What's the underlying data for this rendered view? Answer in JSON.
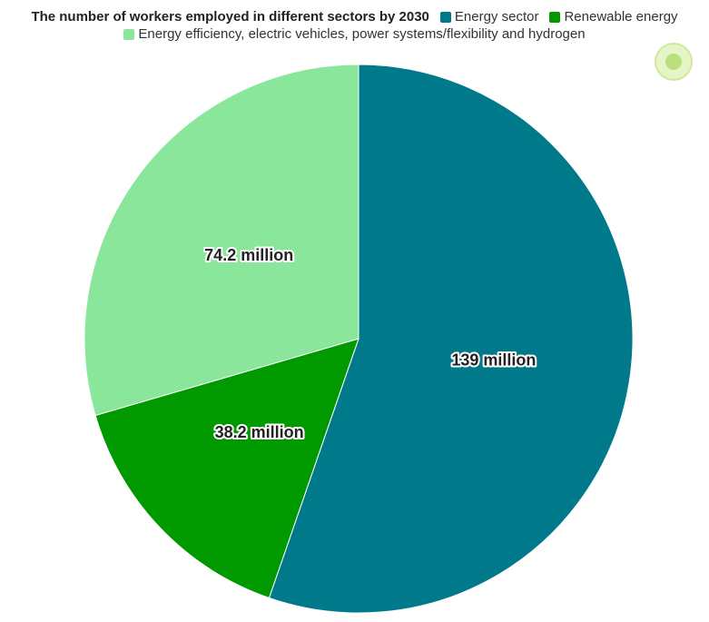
{
  "chart_data": {
    "type": "pie",
    "title": "The number of workers employed in different sectors by 2030",
    "series": [
      {
        "name": "Energy sector",
        "color": "#007a8a",
        "values": [
          139
        ],
        "value_labels": [
          "139 million"
        ]
      },
      {
        "name": "Renewable energy",
        "color": "#009a00",
        "values": [
          38.2
        ],
        "value_labels": [
          "38.2 million"
        ]
      },
      {
        "name": "Energy efficiency, electric vehicles, power systems/flexibility and hydrogen",
        "color": "#8ae69a",
        "values": [
          74.2
        ],
        "value_labels": [
          "74.2 million"
        ]
      }
    ]
  }
}
